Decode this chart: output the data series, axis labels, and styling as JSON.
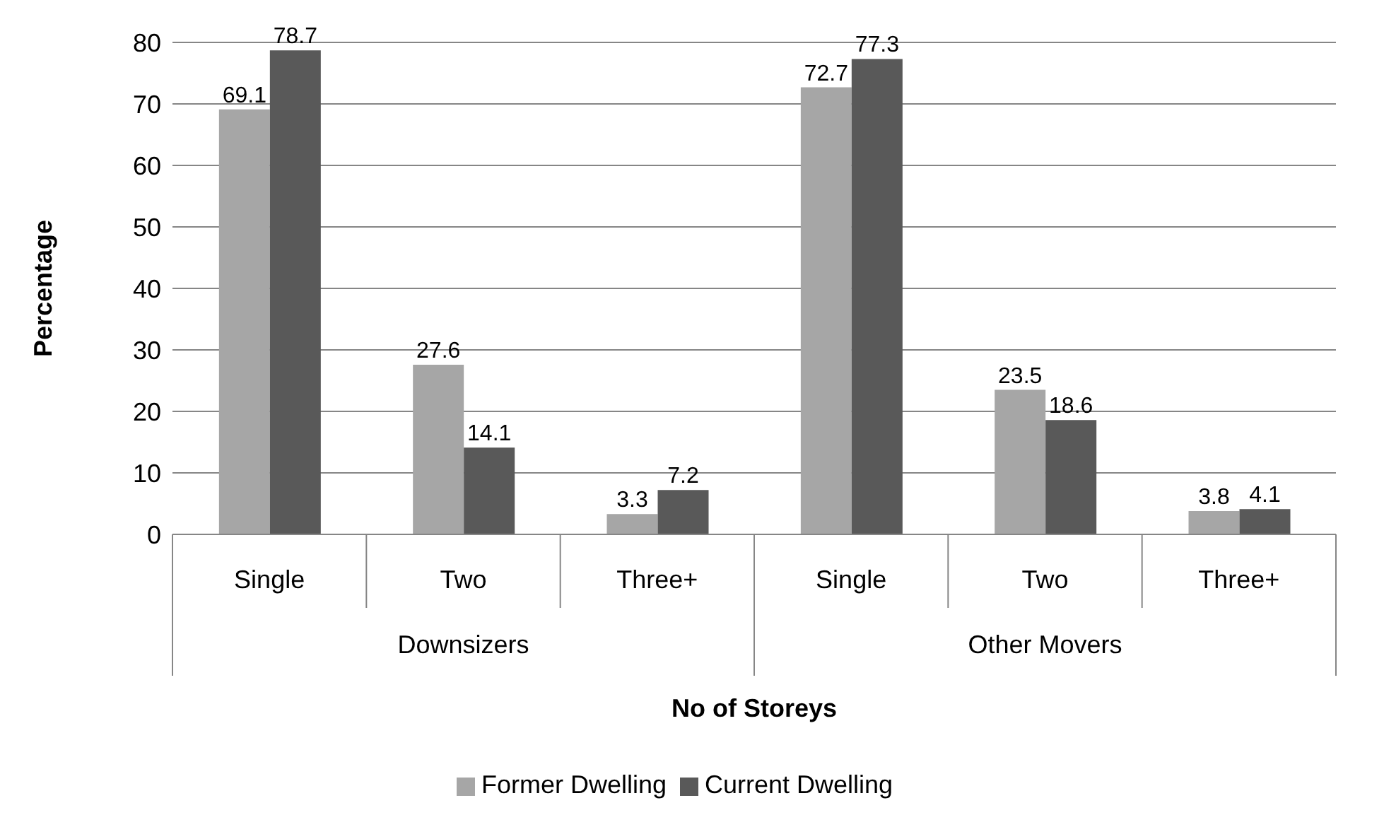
{
  "chart_data": {
    "type": "bar",
    "xlabel": "No of Storeys",
    "ylabel": "Percentage",
    "categories": [
      "Single",
      "Two",
      "Three+",
      "Single",
      "Two",
      "Three+"
    ],
    "annotations": [
      "Downsizers",
      "Other Movers"
    ],
    "series": [
      {
        "name": "Former Dwelling",
        "color": "#a6a6a6",
        "values": [
          69.1,
          27.6,
          3.3,
          72.7,
          23.5,
          3.8
        ]
      },
      {
        "name": "Current Dwelling",
        "color": "#595959",
        "values": [
          78.7,
          14.1,
          7.2,
          77.3,
          18.6,
          4.1
        ]
      }
    ],
    "ylim": [
      0,
      80
    ],
    "yticks": [
      0,
      10,
      20,
      30,
      40,
      50,
      60,
      70,
      80
    ],
    "grid": "y",
    "legend": "bottom",
    "data_labels": true
  }
}
